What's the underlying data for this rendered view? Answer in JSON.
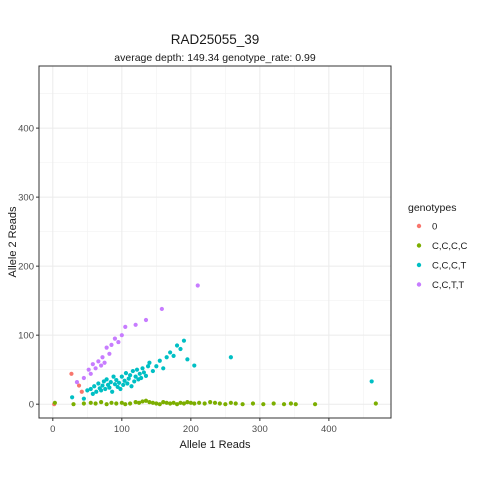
{
  "chart_data": {
    "type": "scatter",
    "title": "RAD25055_39",
    "subtitle": "average depth:  149.34  genotype_rate:  0.99",
    "xlabel": "Allele 1 Reads",
    "ylabel": "Allele 2 Reads",
    "xlim": [
      -20,
      490
    ],
    "ylim": [
      -20,
      490
    ],
    "x_ticks": [
      0,
      100,
      200,
      300,
      400
    ],
    "y_ticks": [
      0,
      100,
      200,
      300,
      400
    ],
    "grid": true,
    "legend_title": "genotypes",
    "legend_position": "right",
    "series": [
      {
        "name": "0",
        "color": "#F8766D",
        "points": [
          [
            2,
            0
          ],
          [
            27,
            44
          ],
          [
            42,
            18
          ],
          [
            38,
            27
          ]
        ]
      },
      {
        "name": "C,C,C,C",
        "color": "#7CAE00",
        "points": [
          [
            3,
            2
          ],
          [
            30,
            0
          ],
          [
            45,
            1
          ],
          [
            55,
            2
          ],
          [
            62,
            1
          ],
          [
            70,
            3
          ],
          [
            78,
            0
          ],
          [
            85,
            2
          ],
          [
            92,
            1
          ],
          [
            100,
            2
          ],
          [
            105,
            0
          ],
          [
            112,
            1
          ],
          [
            120,
            3
          ],
          [
            125,
            2
          ],
          [
            130,
            4
          ],
          [
            135,
            5
          ],
          [
            140,
            3
          ],
          [
            145,
            2
          ],
          [
            150,
            1
          ],
          [
            155,
            0
          ],
          [
            160,
            3
          ],
          [
            165,
            2
          ],
          [
            170,
            1
          ],
          [
            175,
            2
          ],
          [
            180,
            0
          ],
          [
            185,
            2
          ],
          [
            190,
            1
          ],
          [
            195,
            3
          ],
          [
            200,
            2
          ],
          [
            205,
            1
          ],
          [
            212,
            2
          ],
          [
            220,
            1
          ],
          [
            228,
            3
          ],
          [
            235,
            2
          ],
          [
            242,
            1
          ],
          [
            250,
            0
          ],
          [
            258,
            2
          ],
          [
            265,
            1
          ],
          [
            275,
            0
          ],
          [
            290,
            1
          ],
          [
            305,
            0
          ],
          [
            320,
            1
          ],
          [
            335,
            0
          ],
          [
            345,
            1
          ],
          [
            352,
            0
          ],
          [
            380,
            0
          ],
          [
            468,
            1
          ]
        ]
      },
      {
        "name": "C,C,C,T",
        "color": "#00BFC4",
        "points": [
          [
            28,
            10
          ],
          [
            45,
            8
          ],
          [
            50,
            20
          ],
          [
            55,
            22
          ],
          [
            58,
            15
          ],
          [
            60,
            26
          ],
          [
            63,
            18
          ],
          [
            66,
            30
          ],
          [
            68,
            23
          ],
          [
            70,
            20
          ],
          [
            72,
            27
          ],
          [
            74,
            33
          ],
          [
            76,
            22
          ],
          [
            78,
            36
          ],
          [
            80,
            28
          ],
          [
            82,
            24
          ],
          [
            84,
            32
          ],
          [
            86,
            18
          ],
          [
            88,
            40
          ],
          [
            90,
            29
          ],
          [
            92,
            35
          ],
          [
            94,
            25
          ],
          [
            96,
            31
          ],
          [
            98,
            22
          ],
          [
            100,
            40
          ],
          [
            102,
            28
          ],
          [
            104,
            34
          ],
          [
            106,
            45
          ],
          [
            108,
            30
          ],
          [
            110,
            37
          ],
          [
            112,
            42
          ],
          [
            114,
            26
          ],
          [
            116,
            48
          ],
          [
            118,
            33
          ],
          [
            120,
            40
          ],
          [
            122,
            50
          ],
          [
            124,
            36
          ],
          [
            126,
            44
          ],
          [
            128,
            38
          ],
          [
            130,
            52
          ],
          [
            132,
            46
          ],
          [
            135,
            41
          ],
          [
            138,
            55
          ],
          [
            140,
            60
          ],
          [
            145,
            48
          ],
          [
            150,
            55
          ],
          [
            155,
            63
          ],
          [
            160,
            52
          ],
          [
            165,
            68
          ],
          [
            170,
            75
          ],
          [
            175,
            70
          ],
          [
            180,
            85
          ],
          [
            185,
            80
          ],
          [
            190,
            92
          ],
          [
            195,
            65
          ],
          [
            205,
            56
          ],
          [
            258,
            68
          ],
          [
            462,
            33
          ]
        ]
      },
      {
        "name": "C,C,T,T",
        "color": "#C77CFF",
        "points": [
          [
            35,
            32
          ],
          [
            45,
            38
          ],
          [
            52,
            50
          ],
          [
            55,
            44
          ],
          [
            58,
            58
          ],
          [
            62,
            52
          ],
          [
            66,
            62
          ],
          [
            70,
            56
          ],
          [
            72,
            68
          ],
          [
            75,
            60
          ],
          [
            78,
            82
          ],
          [
            82,
            73
          ],
          [
            85,
            86
          ],
          [
            90,
            95
          ],
          [
            95,
            90
          ],
          [
            100,
            100
          ],
          [
            105,
            112
          ],
          [
            120,
            115
          ],
          [
            135,
            122
          ],
          [
            158,
            138
          ],
          [
            210,
            172
          ]
        ]
      }
    ]
  }
}
